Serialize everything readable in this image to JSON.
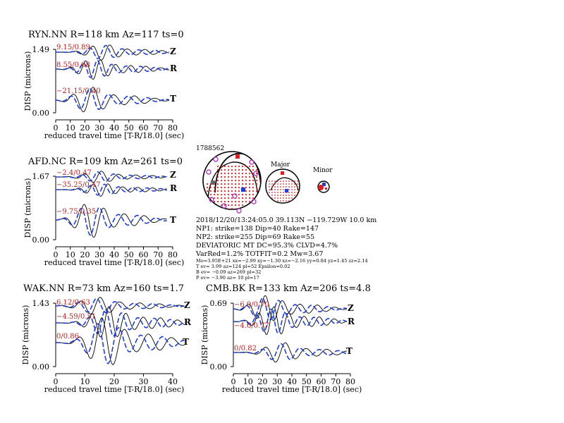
{
  "waveform_panels": [
    {
      "id": "ryn",
      "title": "RYN.NN R=118 km Az=117 ts=0",
      "ylabel": "DISP (microns)",
      "xlabel": "reduced travel time [T-R/18.0] (sec)",
      "ymax_label": "1.49",
      "ymin_label": "0.00",
      "xticks": [
        "0",
        "10",
        "20",
        "30",
        "40",
        "50",
        "60",
        "70",
        "80"
      ],
      "xlim": [
        0,
        80
      ],
      "traces": [
        {
          "component": "Z",
          "ratio": "9.15/0.89"
        },
        {
          "component": "R",
          "ratio": "8.55/0.68"
        },
        {
          "component": "T",
          "ratio": "−21.15/0.40"
        }
      ]
    },
    {
      "id": "afd",
      "title": "AFD.NC R=109 km Az=261 ts=0",
      "ylabel": "DISP (microns)",
      "xlabel": "reduced travel time [T-R/18.0] (sec)",
      "ymax_label": "1.67",
      "ymin_label": "0.00",
      "xticks": [
        "0",
        "10",
        "20",
        "30",
        "40",
        "50",
        "60",
        "70",
        "80"
      ],
      "xlim": [
        0,
        80
      ],
      "traces": [
        {
          "component": "Z",
          "ratio": "−2.4/0.47"
        },
        {
          "component": "R",
          "ratio": "−35.25/0.47"
        },
        {
          "component": "T",
          "ratio": "−9.75/0.35"
        }
      ]
    },
    {
      "id": "wak",
      "title": "WAK.NN R=73 km Az=160 ts=1.7",
      "ylabel": "DISP (microns)",
      "xlabel": "reduced travel time [T-R/18.0] (sec)",
      "ymax_label": "1.43",
      "ymin_label": "0.00",
      "xticks": [
        "0",
        "10",
        "20",
        "30",
        "40"
      ],
      "xlim": [
        0,
        40
      ],
      "traces": [
        {
          "component": "Z",
          "ratio": "6.12/0.63"
        },
        {
          "component": "R",
          "ratio": "−4.59/0.51"
        },
        {
          "component": "T",
          "ratio": "0/0.86"
        }
      ]
    },
    {
      "id": "cmb",
      "title": "CMB.BK R=133 km Az=206 ts=4.8",
      "ylabel": "DISP (microns)",
      "xlabel": "reduced travel time [T-R/18.0] (sec)",
      "ymax_label": "0.69",
      "ymin_label": "0.00",
      "xticks": [
        "0",
        "10",
        "20",
        "30",
        "40",
        "50",
        "60",
        "70",
        "80"
      ],
      "xlim": [
        0,
        80
      ],
      "traces": [
        {
          "component": "Z",
          "ratio": "−6.9/0.70"
        },
        {
          "component": "R",
          "ratio": "−4.6/0.77"
        },
        {
          "component": "T",
          "ratio": "0/0.82"
        }
      ]
    }
  ],
  "chart_data": [
    {
      "type": "line",
      "title": "RYN.NN R=118 km Az=117 ts=0",
      "xlabel": "reduced travel time [T-R/18.0] (sec)",
      "ylabel": "DISP (microns)",
      "xlim": [
        0,
        80
      ],
      "ylim": [
        0.0,
        1.49
      ],
      "series": [
        {
          "name": "Z",
          "annotation": "9.15/0.89"
        },
        {
          "name": "R",
          "annotation": "8.55/0.68"
        },
        {
          "name": "T",
          "annotation": "−21.15/0.40"
        }
      ]
    },
    {
      "type": "line",
      "title": "AFD.NC R=109 km Az=261 ts=0",
      "xlabel": "reduced travel time [T-R/18.0] (sec)",
      "ylabel": "DISP (microns)",
      "xlim": [
        0,
        80
      ],
      "ylim": [
        0.0,
        1.67
      ],
      "series": [
        {
          "name": "Z",
          "annotation": "−2.4/0.47"
        },
        {
          "name": "R",
          "annotation": "−35.25/0.47"
        },
        {
          "name": "T",
          "annotation": "−9.75/0.35"
        }
      ]
    },
    {
      "type": "line",
      "title": "WAK.NN R=73 km Az=160 ts=1.7",
      "xlabel": "reduced travel time [T-R/18.0] (sec)",
      "ylabel": "DISP (microns)",
      "xlim": [
        0,
        40
      ],
      "ylim": [
        0.0,
        1.43
      ],
      "series": [
        {
          "name": "Z",
          "annotation": "6.12/0.63"
        },
        {
          "name": "R",
          "annotation": "−4.59/0.51"
        },
        {
          "name": "T",
          "annotation": "0/0.86"
        }
      ]
    },
    {
      "type": "line",
      "title": "CMB.BK R=133 km Az=206 ts=4.8",
      "xlabel": "reduced travel time [T-R/18.0] (sec)",
      "ylabel": "DISP (microns)",
      "xlim": [
        0,
        80
      ],
      "ylim": [
        0.0,
        0.69
      ],
      "series": [
        {
          "name": "Z",
          "annotation": "−6.9/0.70"
        },
        {
          "name": "R",
          "annotation": "−4.6/0.77"
        },
        {
          "name": "T",
          "annotation": "0/0.82"
        }
      ]
    }
  ],
  "mechanism": {
    "event_id": "1788562",
    "major_label": "Major",
    "minor_label": "Minor",
    "info_lines": [
      "2018/12/20/13:24:05.0 39.113N −119.729W 10.0 km",
      "NP1: strike=138 Dip=40 Rake=147",
      "NP2: strike=255 Dip=69 Rake=55",
      "DEVIATORIC MT DC=95.3% CLVD=4.7%",
      "VarRed=1.2% TOTFIT=0.2 Mw=3.67"
    ],
    "small_lines": [
      "Mo=3.95E+21 xx=−2.99 xy=−1.30 xz=−2.16 yy=0.84 yz=1.45 zz=2.14",
      "T ev= 3.99 az=124 pl=52 Epsilon=0.02",
      "B ev= −0.09 az=269 pl=32",
      "P ev= −3.90 az= 10 pl=17"
    ]
  },
  "colors": {
    "observed": "#000000",
    "synthetic": "#1f3fd0",
    "ratio_text": "#b22222",
    "compression": "#e02020",
    "station_marker": "#b040c0"
  }
}
